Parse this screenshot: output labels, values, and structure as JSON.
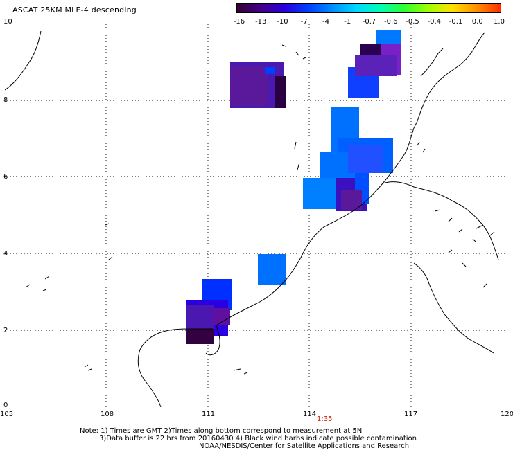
{
  "title": "ASCAT 25KM MLE-4 descending",
  "colorbar": {
    "labels": [
      "-16",
      "-13",
      "-10",
      "-7",
      "-4",
      "-1",
      "-0.7",
      "-0.6",
      "-0.5",
      "-0.4",
      "-0.1",
      "0.0",
      "1.0"
    ],
    "colors": [
      "#330033",
      "#44008a",
      "#2a00e0",
      "#0040ff",
      "#0090ff",
      "#00d8ff",
      "#00ffb0",
      "#30ff30",
      "#a0ff00",
      "#ffe000",
      "#ff9000",
      "#ff3000"
    ]
  },
  "axes": {
    "x_ticks": [
      "105",
      "108",
      "111",
      "114",
      "117",
      "120"
    ],
    "y_ticks": [
      "0",
      "2",
      "4",
      "6",
      "8",
      "10"
    ]
  },
  "pass_time": "1:35",
  "notes": {
    "line1": "Note: 1) Times are GMT 2)Times along bottom correspond to measurement at 5N",
    "line2": "3)Data buffer is 22 hrs from 20160430 4) Black wind barbs indicate possible contamination",
    "line3": "NOAA/NESDIS/Center for Satellite Applications and Research"
  }
}
